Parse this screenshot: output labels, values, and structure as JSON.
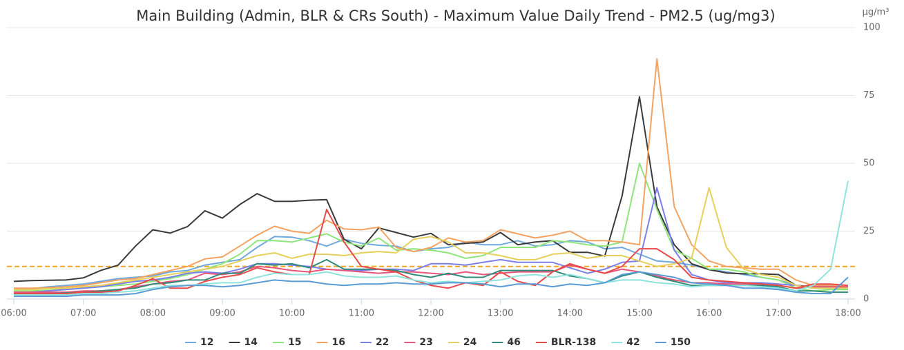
{
  "chart_data": {
    "type": "line",
    "title": "Main Building (Admin, BLR & CRs South) - Maximum Value Daily Trend - PM2.5 (ug/mg3)",
    "y_label": "µg/m³",
    "categories": [
      "06:00",
      null,
      null,
      null,
      "07:00",
      null,
      null,
      null,
      "08:00",
      null,
      null,
      null,
      "09:00",
      null,
      null,
      null,
      "10:00",
      null,
      null,
      null,
      "11:00",
      null,
      null,
      null,
      "12:00",
      null,
      null,
      null,
      "13:00",
      null,
      null,
      null,
      "14:00",
      null,
      null,
      null,
      "15:00",
      null,
      null,
      null,
      "16:00",
      null,
      null,
      null,
      "17:00",
      null,
      null,
      null,
      "18:00"
    ],
    "ylim": [
      0,
      100
    ],
    "yticks": [
      0,
      25,
      50,
      75,
      100
    ],
    "grid": true,
    "y_axis_side": "right",
    "legend": "bottom",
    "threshold": 12,
    "threshold_color": "#f5a623",
    "series": [
      {
        "name": "12",
        "color": "#6fa8dc",
        "values": [
          3.5,
          3.8,
          4.5,
          5,
          5.5,
          6.5,
          7.5,
          8,
          8.5,
          10,
          10.5,
          12.5,
          13.5,
          14.5,
          19,
          23,
          22.8,
          21.5,
          19.5,
          22,
          20.5,
          19.8,
          19.5,
          17.5,
          18.5,
          19,
          21,
          20,
          20,
          21.5,
          19.5,
          20,
          21.5,
          21,
          18.5,
          19,
          16.5,
          14,
          13.5,
          12.5,
          11,
          10,
          9,
          8,
          7,
          5,
          4,
          4,
          4
        ]
      },
      {
        "name": "14",
        "color": "#3a3a3a",
        "values": [
          6.5,
          6.8,
          6.9,
          7,
          7.8,
          10.5,
          12.5,
          19.5,
          25.5,
          24.3,
          26.7,
          32.5,
          29.8,
          34.8,
          38.8,
          36,
          36,
          36.4,
          36.6,
          22,
          18.5,
          26.2,
          24.5,
          22.8,
          24.2,
          20,
          20.5,
          21,
          24.5,
          20,
          21,
          21.5,
          17.2,
          17.2,
          15.8,
          38,
          74.5,
          34,
          20,
          13,
          10.8,
          9.6,
          9.3,
          9.3,
          9,
          5,
          4.5,
          4.5,
          4.3
        ]
      },
      {
        "name": "15",
        "color": "#8ee67a",
        "values": [
          3,
          3,
          3.2,
          3.5,
          4,
          4.5,
          5,
          5.5,
          6.5,
          7.5,
          9,
          11,
          13,
          16.5,
          21.5,
          21.5,
          21,
          22.5,
          24,
          21,
          19.5,
          22.5,
          18,
          18.5,
          18,
          17,
          15,
          16,
          19,
          19,
          19,
          21.5,
          21,
          20,
          19.5,
          21,
          50,
          33,
          18,
          15,
          11,
          11,
          10,
          8,
          7,
          4,
          3,
          3.5,
          3.5
        ]
      },
      {
        "name": "16",
        "color": "#f4a261",
        "values": [
          4,
          4,
          4.2,
          4.5,
          5,
          6,
          7,
          7.5,
          9,
          10.5,
          12,
          14.8,
          15.5,
          19.5,
          23.5,
          26.8,
          25,
          24.2,
          29,
          25.8,
          25.5,
          26.5,
          19,
          17.5,
          19,
          22.5,
          21,
          21.5,
          25.5,
          24,
          22.5,
          23.5,
          25,
          21.5,
          21.5,
          21,
          20,
          88.5,
          34,
          20,
          14,
          12,
          11.5,
          11,
          11,
          7,
          5,
          5,
          4.5
        ]
      },
      {
        "name": "22",
        "color": "#7b7fe8",
        "values": [
          2,
          2.5,
          3,
          3.5,
          4,
          4.5,
          5.5,
          6.5,
          7,
          8,
          9.5,
          10,
          9.5,
          11,
          13,
          13,
          12.5,
          12,
          11,
          10.5,
          10.5,
          11,
          11,
          10.5,
          13,
          13,
          12.5,
          13.5,
          14.5,
          13.5,
          13.5,
          13.5,
          11.5,
          9.5,
          11,
          13.5,
          14,
          41,
          18,
          9,
          7,
          6,
          6,
          6,
          5.5,
          5,
          4,
          4,
          4
        ]
      },
      {
        "name": "23",
        "color": "#e8557a",
        "values": [
          2.5,
          2.5,
          2.5,
          2.5,
          3,
          3,
          3.5,
          4.5,
          5.5,
          6.5,
          7,
          9.5,
          9,
          10,
          12,
          11.5,
          10.5,
          10,
          11,
          10.5,
          10,
          9.5,
          10,
          10,
          9.5,
          9,
          10,
          9,
          9.5,
          10,
          10,
          10,
          12.5,
          11,
          9.5,
          11,
          10,
          8.5,
          7,
          6,
          6,
          5.5,
          5.5,
          5.5,
          5,
          4,
          4.5,
          4.5,
          4.5
        ]
      },
      {
        "name": "24",
        "color": "#e6cf5a",
        "values": [
          3.5,
          3.5,
          3.8,
          4,
          4.5,
          5,
          6,
          7,
          8,
          9,
          10,
          11,
          12,
          14,
          16,
          17,
          15,
          16.5,
          16.5,
          16,
          17,
          17.5,
          17,
          22,
          23,
          21,
          17,
          17,
          16,
          14.5,
          14.5,
          16.5,
          17,
          15,
          16,
          16,
          14,
          12,
          13,
          15,
          41,
          19,
          11,
          9,
          8,
          5,
          4,
          4,
          4
        ]
      },
      {
        "name": "46",
        "color": "#2e8b7a",
        "values": [
          2,
          2,
          2,
          2.2,
          2.5,
          3,
          3.5,
          4,
          5.5,
          6,
          7,
          7,
          9.5,
          9.5,
          13,
          12.5,
          13,
          11.5,
          14.5,
          11,
          11,
          11,
          10.5,
          9,
          8,
          9.5,
          8,
          8,
          10.5,
          10.5,
          10.5,
          10.5,
          8.5,
          7.5,
          6,
          8.5,
          10,
          8,
          6.5,
          5,
          5,
          5,
          5,
          5,
          4.5,
          3,
          3,
          2.5,
          2.5
        ]
      },
      {
        "name": "BLR-138",
        "color": "#e84a4a",
        "values": [
          2,
          2,
          2,
          2,
          2.5,
          2.5,
          3,
          5,
          7.5,
          4,
          4,
          6.5,
          8,
          9,
          11.5,
          10,
          9,
          9,
          33,
          21,
          12,
          11,
          10,
          7,
          5,
          4,
          6,
          5,
          10,
          6.5,
          5,
          10,
          13,
          11,
          9.5,
          12,
          18.5,
          18.5,
          14.5,
          8,
          7,
          6.5,
          6,
          5.5,
          5,
          4,
          5.5,
          5.5,
          5
        ]
      },
      {
        "name": "42",
        "color": "#8ee3dc",
        "values": [
          1.5,
          1.5,
          1.5,
          1.5,
          2,
          2,
          2.5,
          3,
          4,
          5,
          5,
          5.5,
          6,
          6,
          8,
          9.5,
          9,
          9,
          10,
          8.5,
          8,
          8,
          8.5,
          7,
          6,
          6.5,
          6,
          6.5,
          7,
          8.5,
          9,
          8,
          9,
          7.5,
          6,
          7,
          7,
          6,
          5.5,
          4.5,
          5,
          5,
          5,
          4.5,
          4,
          3,
          5,
          11,
          43.5
        ]
      },
      {
        "name": "150",
        "color": "#5b9bd5",
        "values": [
          1,
          1,
          1,
          1,
          1.5,
          1.5,
          1.5,
          2,
          3.5,
          4.5,
          5,
          5,
          4.5,
          5,
          6,
          7,
          6.5,
          6.5,
          5.5,
          5,
          5.5,
          5.5,
          6,
          5.5,
          5.5,
          6,
          6,
          5.5,
          4.5,
          5.5,
          5.5,
          4.5,
          5.5,
          5,
          6,
          9,
          10,
          9,
          8,
          6,
          5.5,
          5,
          4,
          4,
          3.5,
          2.5,
          2,
          2,
          8
        ]
      }
    ]
  }
}
